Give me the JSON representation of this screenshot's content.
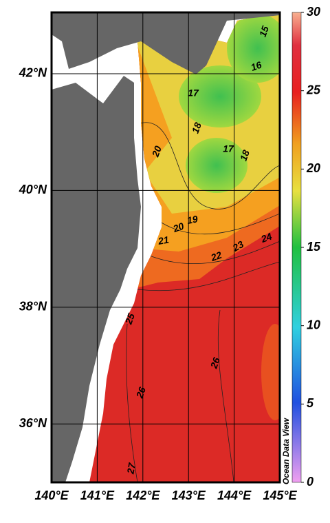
{
  "map": {
    "lonlim": [
      140,
      145
    ],
    "latlim": [
      35,
      43.05
    ],
    "lonticks": [
      {
        "value": 140,
        "label": "140°E"
      },
      {
        "value": 141,
        "label": "141°E"
      },
      {
        "value": 142,
        "label": "142°E"
      },
      {
        "value": 143,
        "label": "143°E"
      },
      {
        "value": 144,
        "label": "144°E"
      },
      {
        "value": 145,
        "label": "145°E"
      }
    ],
    "latticks": [
      {
        "value": 36,
        "label": "36°N"
      },
      {
        "value": 38,
        "label": "38°N"
      },
      {
        "value": 40,
        "label": "40°N"
      },
      {
        "value": 42,
        "label": "42°N"
      }
    ],
    "contour_labels": [
      15,
      16,
      17,
      18,
      17,
      18,
      20,
      19,
      20,
      21,
      22,
      23,
      24,
      25,
      26,
      26,
      27
    ],
    "watermark": "Ocean Data View"
  },
  "colorbar": {
    "lim": [
      0,
      30
    ],
    "ticks": [
      0,
      5,
      10,
      15,
      20,
      25,
      30
    ]
  }
}
